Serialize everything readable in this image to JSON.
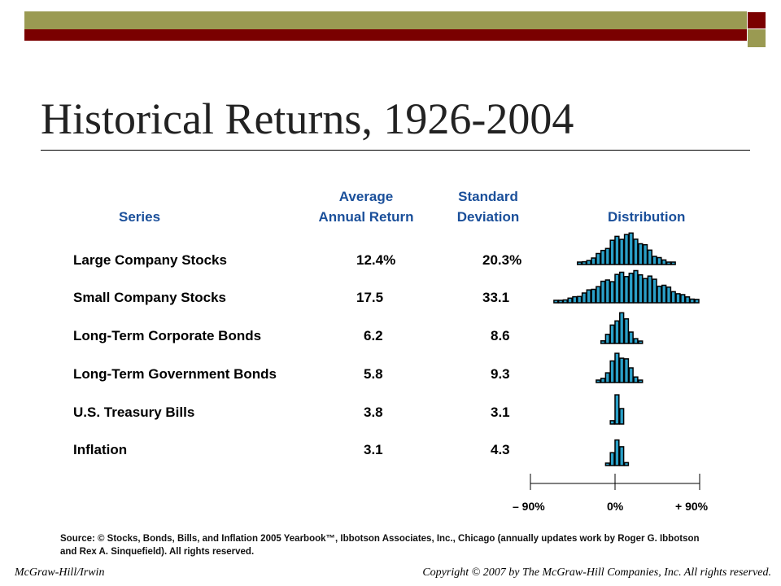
{
  "slide": {
    "title": "Historical Returns, 1926-2004"
  },
  "headers": {
    "series": "Series",
    "avg_line1": "Average",
    "avg_line2": "Annual Return",
    "sd_line1": "Standard",
    "sd_line2": "Deviation",
    "distribution": "Distribution"
  },
  "chart_data": {
    "type": "table",
    "columns": [
      "Series",
      "Average Annual Return",
      "Standard Deviation",
      "Distribution"
    ],
    "rows": [
      {
        "series": "Large Company Stocks",
        "avg": "12.4%",
        "sd": "20.3%",
        "mean": 12.4,
        "stdev": 20.3
      },
      {
        "series": "Small Company Stocks",
        "avg": "17.5",
        "sd": "33.1",
        "mean": 17.5,
        "stdev": 33.1
      },
      {
        "series": "Long-Term Corporate Bonds",
        "avg": "6.2",
        "sd": "8.6",
        "mean": 6.2,
        "stdev": 8.6
      },
      {
        "series": "Long-Term Government Bonds",
        "avg": "5.8",
        "sd": "9.3",
        "mean": 5.8,
        "stdev": 9.3
      },
      {
        "series": "U.S. Treasury Bills",
        "avg": "3.8",
        "sd": "3.1",
        "mean": 3.8,
        "stdev": 3.1
      },
      {
        "series": "Inflation",
        "avg": "3.1",
        "sd": "4.3",
        "mean": 3.1,
        "stdev": 4.3
      }
    ],
    "distribution_axis": {
      "range": [
        -90,
        90
      ],
      "ticks": [
        -90,
        0,
        90
      ],
      "tick_labels": [
        "– 90%",
        "0%",
        "+ 90%"
      ]
    },
    "bar_color": "#2aa0c8",
    "bar_outline": "#000000"
  },
  "source_note": "Source: © Stocks, Bonds, Bills, and Inflation 2005 Yearbook™, Ibbotson Associates, Inc., Chicago (annually updates work by Roger G. Ibbotson and Rex A. Sinquefield). All rights reserved.",
  "footer": {
    "left": "McGraw-Hill/Irwin",
    "right": "Copyright © 2007 by The McGraw-Hill Companies, Inc. All rights reserved."
  }
}
